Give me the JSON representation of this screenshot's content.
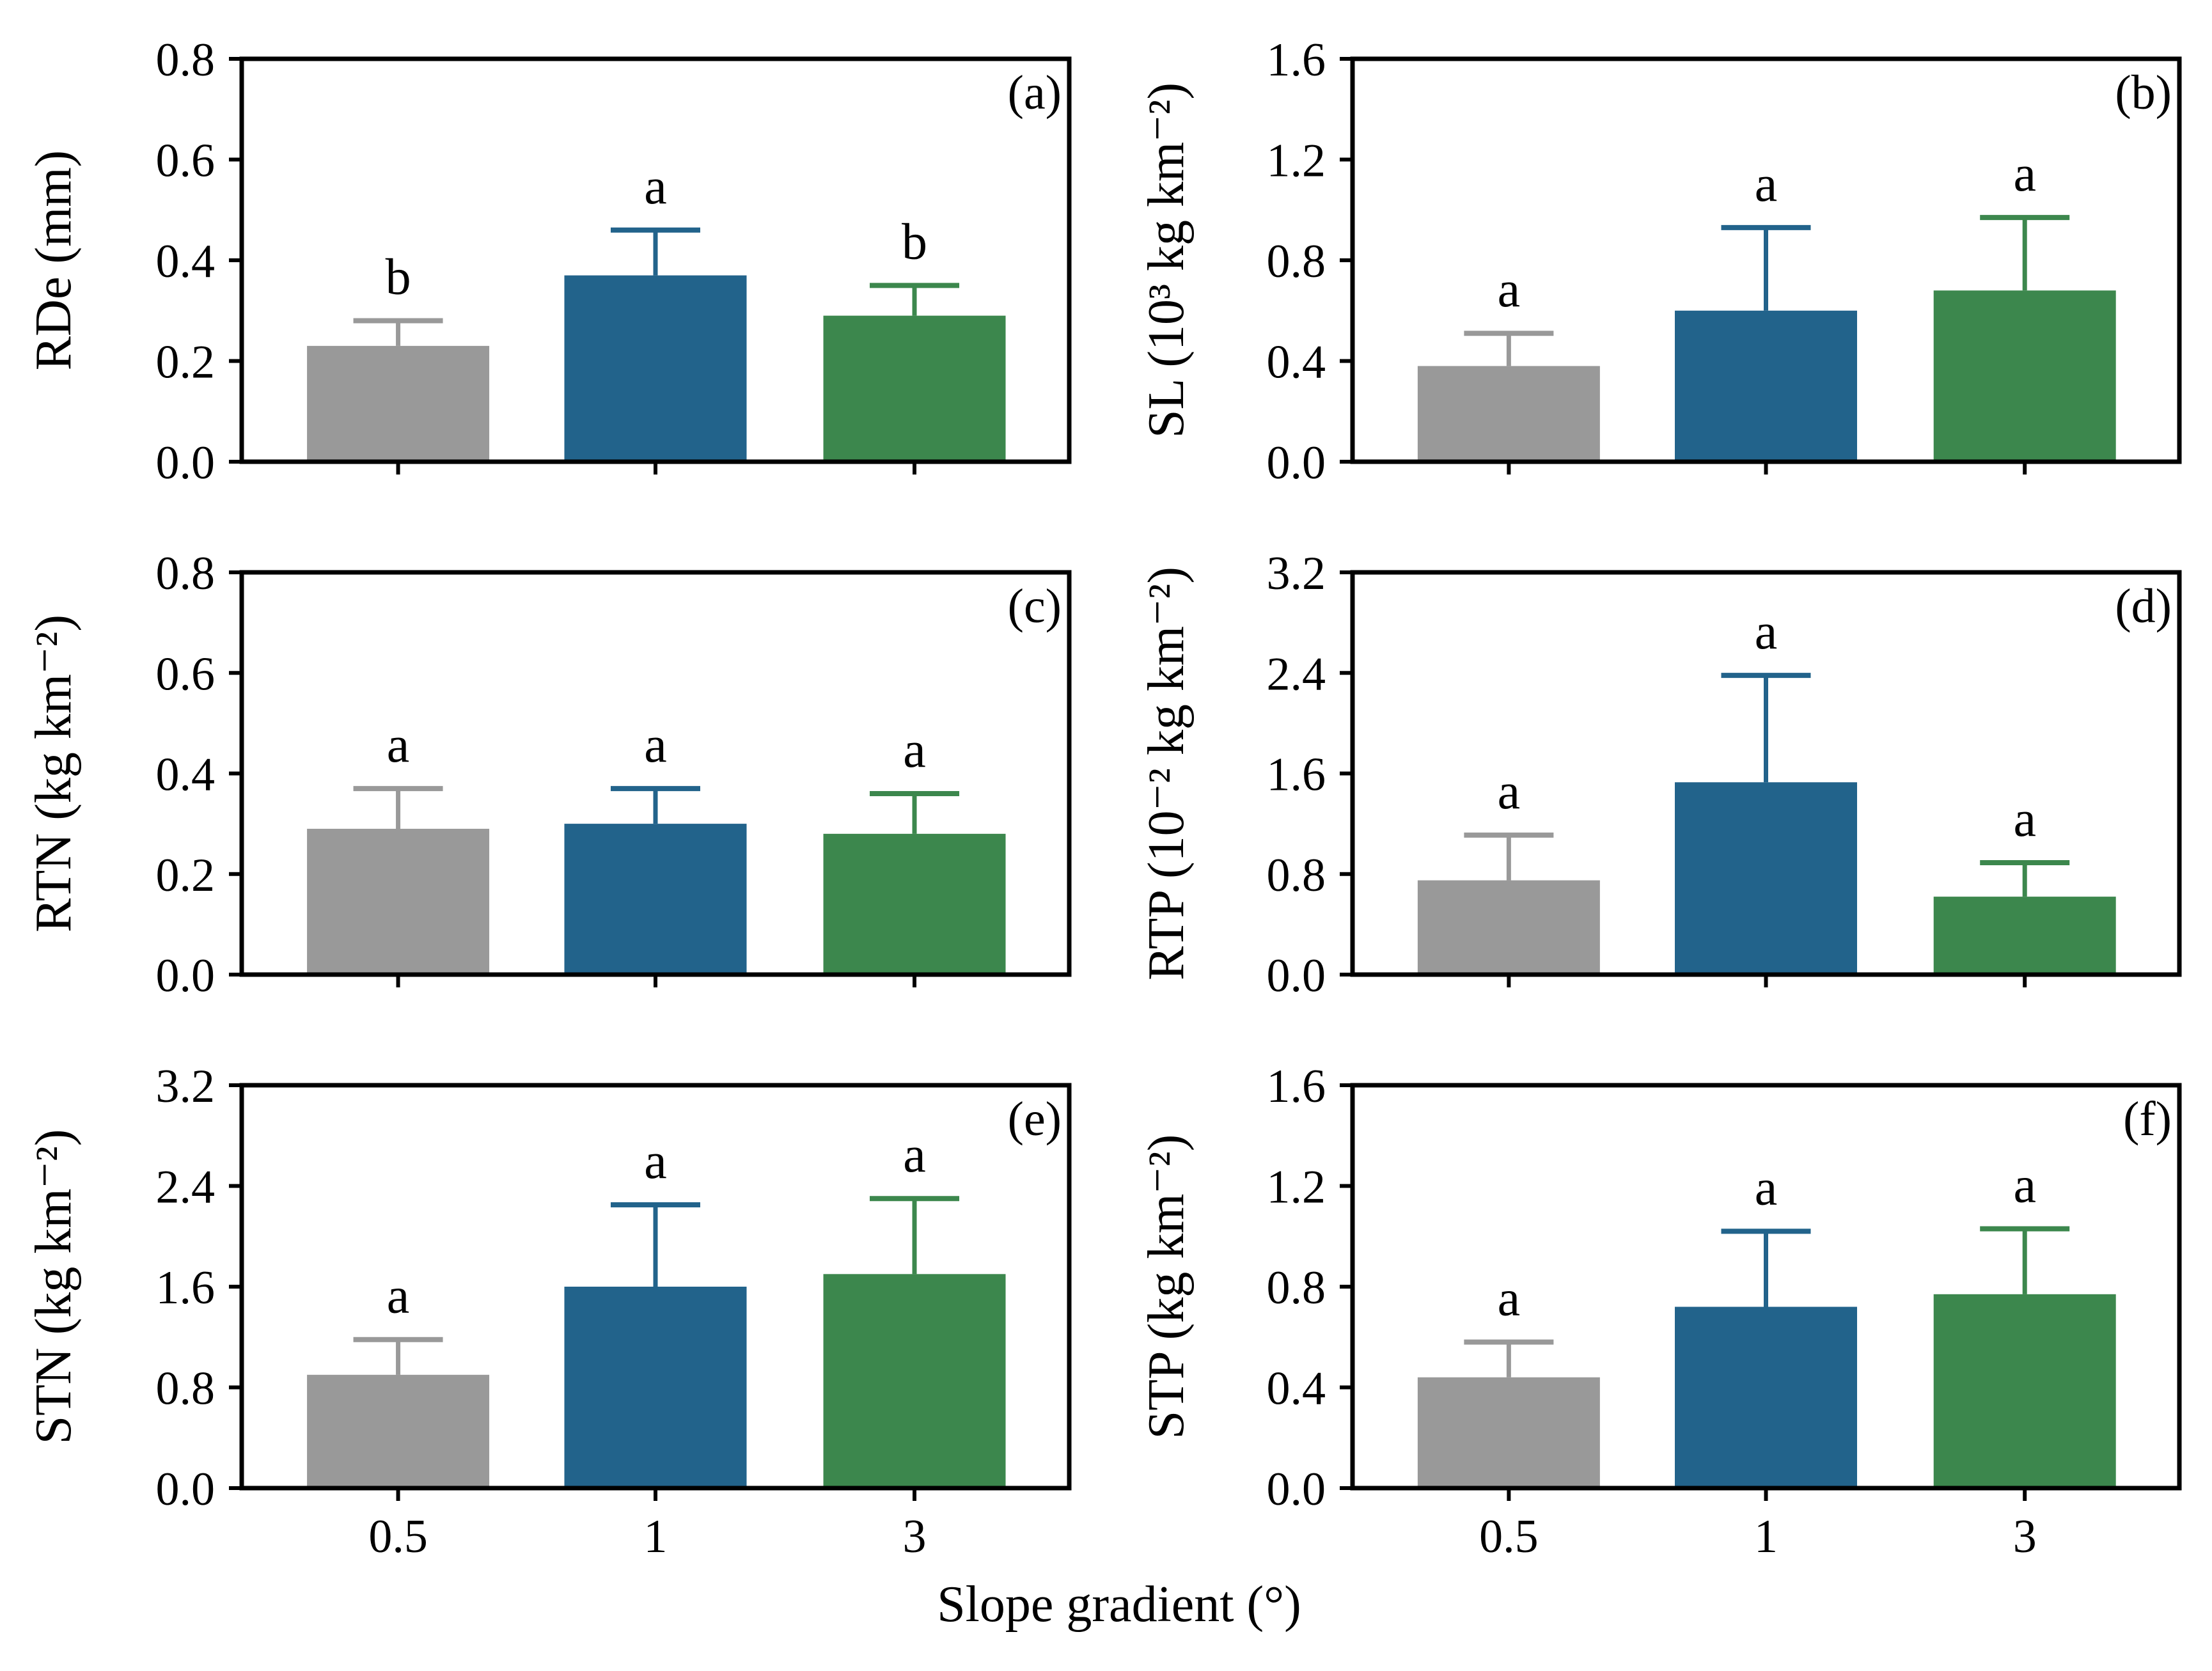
{
  "figure": {
    "xlabel": "Slope gradient (°)"
  },
  "colors": {
    "0.5": "#999999",
    "1": "#22638b",
    "3": "#3c874d",
    "axis": "#000000"
  },
  "chart_data": [
    {
      "type": "bar",
      "panel": "(a)",
      "ylabel": "RDe (mm)",
      "categories": [
        "0.5",
        "1",
        "3"
      ],
      "values": [
        0.23,
        0.37,
        0.29
      ],
      "errors": [
        0.05,
        0.09,
        0.06
      ],
      "letters": [
        "b",
        "a",
        "b"
      ],
      "ylim": [
        0,
        0.8
      ],
      "yticks": [
        0.0,
        0.2,
        0.4,
        0.6,
        0.8
      ],
      "ytick_labels": [
        "0.0",
        "0.2",
        "0.4",
        "0.6",
        "0.8"
      ]
    },
    {
      "type": "bar",
      "panel": "(b)",
      "ylabel": "SL (10³ kg km⁻²)",
      "categories": [
        "0.5",
        "1",
        "3"
      ],
      "values": [
        0.38,
        0.6,
        0.68
      ],
      "errors": [
        0.13,
        0.33,
        0.29
      ],
      "letters": [
        "a",
        "a",
        "a"
      ],
      "ylim": [
        0,
        1.6
      ],
      "yticks": [
        0.0,
        0.4,
        0.8,
        1.2,
        1.6
      ],
      "ytick_labels": [
        "0.0",
        "0.4",
        "0.8",
        "1.2",
        "1.6"
      ]
    },
    {
      "type": "bar",
      "panel": "(c)",
      "ylabel": "RTN (kg km⁻²)",
      "categories": [
        "0.5",
        "1",
        "3"
      ],
      "values": [
        0.29,
        0.3,
        0.28
      ],
      "errors": [
        0.08,
        0.07,
        0.08
      ],
      "letters": [
        "a",
        "a",
        "a"
      ],
      "ylim": [
        0,
        0.8
      ],
      "yticks": [
        0.0,
        0.2,
        0.4,
        0.6,
        0.8
      ],
      "ytick_labels": [
        "0.0",
        "0.2",
        "0.4",
        "0.6",
        "0.8"
      ]
    },
    {
      "type": "bar",
      "panel": "(d)",
      "ylabel": "RTP (10⁻² kg km⁻²)",
      "categories": [
        "0.5",
        "1",
        "3"
      ],
      "values": [
        0.75,
        1.53,
        0.62
      ],
      "errors": [
        0.36,
        0.85,
        0.27
      ],
      "letters": [
        "a",
        "a",
        "a"
      ],
      "ylim": [
        0,
        3.2
      ],
      "yticks": [
        0.0,
        0.8,
        1.6,
        2.4,
        3.2
      ],
      "ytick_labels": [
        "0.0",
        "0.8",
        "1.6",
        "2.4",
        "3.2"
      ]
    },
    {
      "type": "bar",
      "panel": "(e)",
      "ylabel": "STN (kg km⁻²)",
      "categories": [
        "0.5",
        "1",
        "3"
      ],
      "values": [
        0.9,
        1.6,
        1.7
      ],
      "errors": [
        0.28,
        0.65,
        0.6
      ],
      "letters": [
        "a",
        "a",
        "a"
      ],
      "ylim": [
        0,
        3.2
      ],
      "yticks": [
        0.0,
        0.8,
        1.6,
        2.4,
        3.2
      ],
      "ytick_labels": [
        "0.0",
        "0.8",
        "1.6",
        "2.4",
        "3.2"
      ]
    },
    {
      "type": "bar",
      "panel": "(f)",
      "ylabel": "STP (kg km⁻²)",
      "categories": [
        "0.5",
        "1",
        "3"
      ],
      "values": [
        0.44,
        0.72,
        0.77
      ],
      "errors": [
        0.14,
        0.3,
        0.26
      ],
      "letters": [
        "a",
        "a",
        "a"
      ],
      "ylim": [
        0,
        1.6
      ],
      "yticks": [
        0.0,
        0.4,
        0.8,
        1.2,
        1.6
      ],
      "ytick_labels": [
        "0.0",
        "0.4",
        "0.8",
        "1.2",
        "1.6"
      ]
    }
  ]
}
